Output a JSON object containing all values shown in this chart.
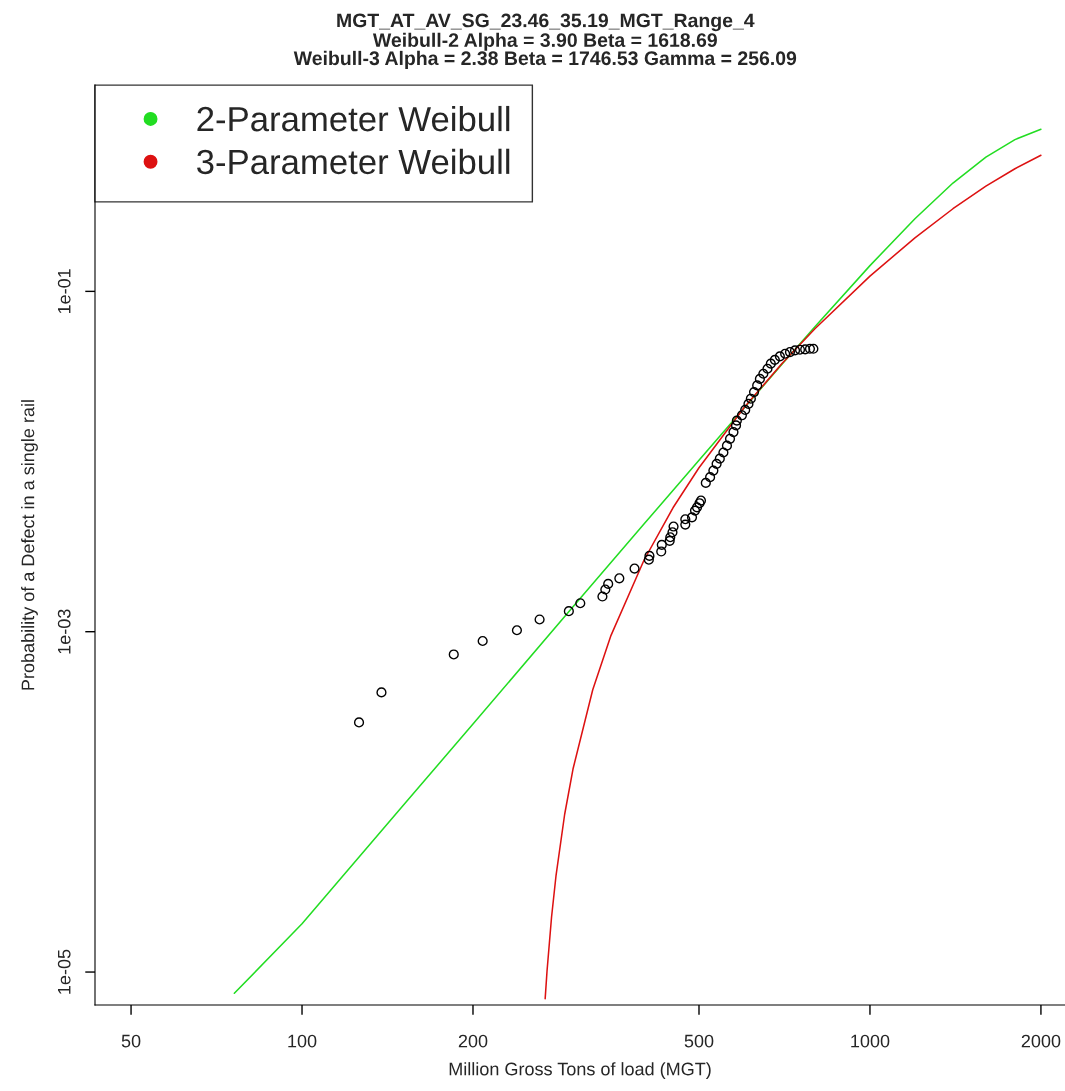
{
  "chart_data": {
    "type": "scatter",
    "title": "MGT_AT_AV_SG_23.46_35.19_MGT_Range_4",
    "subtitle": "Weibull-2 Alpha = 3.90 Beta = 1618.69\nWeibull-3 Alpha = 2.38 Beta = 1746.53 Gamma = 256.09",
    "xlabel": "Million Gross Tons of load (MGT)",
    "ylabel": "Probability of a Defect in a single rail",
    "log": "xy",
    "xlim": [
      43.2,
      2205
    ],
    "ylim": [
      6.4e-06,
      1.63
    ],
    "xticks": [
      50,
      100,
      200,
      500,
      1000,
      2000
    ],
    "yticks": [
      {
        "value": 1e-05,
        "label": "1e-05"
      },
      {
        "value": 0.001,
        "label": "1e-03"
      },
      {
        "value": 0.1,
        "label": "1e-01"
      }
    ],
    "grid": false,
    "legend": "top left",
    "series": [
      {
        "marker": "circle",
        "color": "#000000",
        "x": [
          126,
          138,
          185,
          208,
          239,
          262,
          295,
          309,
          338,
          342,
          346,
          362,
          385,
          408,
          409,
          429,
          430,
          444,
          445,
          449,
          451,
          473,
          473,
          486,
          492,
          496,
          501,
          504,
          514,
          523,
          530,
          537,
          544,
          552,
          560,
          567,
          575,
          581,
          583,
          595,
          603,
          611,
          617,
          625,
          633,
          640,
          649,
          660,
          669,
          680,
          694,
          709,
          723,
          738,
          753,
          769,
          784,
          795
        ],
        "values": [
          0.000293,
          0.00044,
          0.000735,
          0.000882,
          0.00102,
          0.00118,
          0.00132,
          0.00147,
          0.00161,
          0.00177,
          0.00191,
          0.00206,
          0.00235,
          0.00265,
          0.00279,
          0.00296,
          0.00324,
          0.00342,
          0.00359,
          0.00384,
          0.00415,
          0.00426,
          0.00458,
          0.0047,
          0.00515,
          0.00538,
          0.00569,
          0.0059,
          0.00749,
          0.00809,
          0.00885,
          0.00969,
          0.0104,
          0.0113,
          0.0124,
          0.0136,
          0.0149,
          0.0163,
          0.0174,
          0.0187,
          0.0201,
          0.0218,
          0.0234,
          0.0256,
          0.028,
          0.0306,
          0.0328,
          0.0351,
          0.0376,
          0.0396,
          0.0415,
          0.043,
          0.044,
          0.045,
          0.0454,
          0.0456,
          0.046,
          0.046
        ]
      },
      {
        "type": "line",
        "name": "2-Parameter Weibull",
        "color": "#22dd22",
        "x": [
          76,
          100,
          150,
          200,
          300,
          400,
          500,
          600,
          700,
          800,
          1000,
          1200,
          1400,
          1600,
          1800,
          2000
        ],
        "values": [
          7.5e-06,
          1.92e-05,
          9.35e-05,
          0.000287,
          0.0014,
          0.00429,
          0.01018,
          0.0206,
          0.0373,
          0.062,
          0.1417,
          0.2674,
          0.433,
          0.6153,
          0.7798,
          0.8977
        ]
      },
      {
        "type": "line",
        "name": "3-Parameter Weibull",
        "color": "#dd1111",
        "x": [
          268,
          270,
          275,
          280,
          290,
          300,
          325,
          350,
          400,
          450,
          500,
          600,
          700,
          800,
          1000,
          1200,
          1400,
          1600,
          1800,
          2000
        ],
        "values": [
          6.98e-06,
          1.01e-05,
          2.1e-05,
          3.67e-05,
          8.43e-05,
          0.000156,
          0.000456,
          0.000952,
          0.00263,
          0.00535,
          0.00919,
          0.0207,
          0.0377,
          0.0603,
          0.1229,
          0.2063,
          0.3059,
          0.415,
          0.5255,
          0.6307
        ]
      }
    ]
  }
}
